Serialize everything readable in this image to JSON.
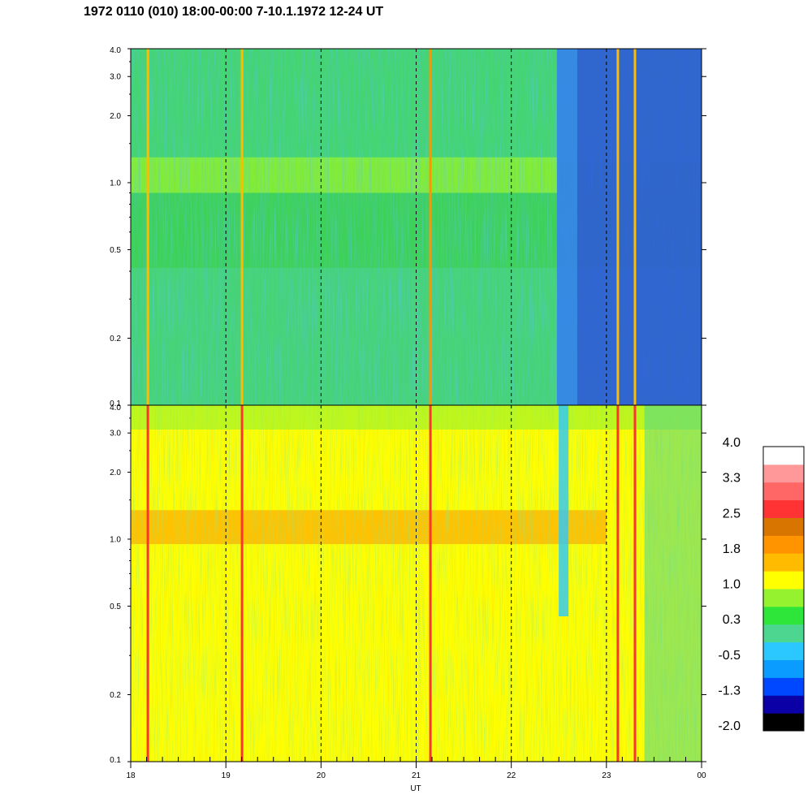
{
  "title": "1972 0110 (010) 18:00-00:00 7-10.1.1972  12-24 UT",
  "colors": {
    "colorbar": [
      "#000000",
      "#0a00a6",
      "#0048ff",
      "#0a9cff",
      "#2bc8ff",
      "#4cd68f",
      "#2ee63a",
      "#94f22e",
      "#ffff00",
      "#ffbb00",
      "#ff9400",
      "#d87400",
      "#ff3333",
      "#ff6666",
      "#ff9999",
      "#ffffff"
    ],
    "event_dark": "#2d53dd",
    "event_edge": "#3aa2ee"
  },
  "chart_data": [
    {
      "type": "heatmap",
      "panel": "top",
      "x": {
        "label": "",
        "ticks": [
          "18",
          "19",
          "20",
          "21",
          "22",
          "23",
          "00"
        ]
      },
      "y": {
        "scale": "log",
        "range": [
          0.1,
          4.0
        ],
        "ticks": [
          "0.1",
          "0.2",
          "0.5",
          "1.0",
          "2.0",
          "3.0",
          "4.0"
        ]
      },
      "background_color": "#3ed15a",
      "band": {
        "y_range": [
          0.9,
          1.3
        ],
        "color": "#94f22e",
        "x_end": 22.5
      },
      "dark_event": {
        "x_range": [
          22.48,
          24.0
        ],
        "color": "#2d53dd"
      },
      "spikes": [
        {
          "x": 18.18,
          "color": "#ffbb00"
        },
        {
          "x": 19.17,
          "color": "#ffbb00"
        },
        {
          "x": 21.15,
          "color": "#ff9400"
        },
        {
          "x": 23.12,
          "color": "#ffbb00"
        },
        {
          "x": 23.3,
          "color": "#ffbb00"
        }
      ],
      "dashed_lines_at": [
        19,
        20,
        21,
        22,
        23
      ]
    },
    {
      "type": "heatmap",
      "panel": "bottom",
      "x": {
        "label": "UT",
        "ticks": [
          "18",
          "19",
          "20",
          "21",
          "22",
          "23",
          "00"
        ]
      },
      "y": {
        "scale": "log",
        "range": [
          0.1,
          4.0
        ],
        "ticks": [
          "0.1",
          "0.2",
          "0.5",
          "1.0",
          "2.0",
          "3.0",
          "4.0"
        ]
      },
      "background_color": "#ffff00",
      "band": {
        "y_range": [
          0.95,
          1.35
        ],
        "color": "#ffbb00",
        "x_end": 23.0
      },
      "blue_streak": {
        "x": 22.55,
        "y_range": [
          0.45,
          4.0
        ],
        "color": "#2bc8ff"
      },
      "spikes": [
        {
          "x": 18.18,
          "color": "#ff3333"
        },
        {
          "x": 19.17,
          "color": "#ff3333"
        },
        {
          "x": 21.15,
          "color": "#ff3333"
        },
        {
          "x": 23.12,
          "color": "#ff3333"
        },
        {
          "x": 23.3,
          "color": "#ff3333"
        }
      ],
      "dashed_lines_at": [
        19,
        20,
        21,
        22,
        23
      ]
    }
  ],
  "colorbar": {
    "labels": [
      "4.0",
      "3.3",
      "2.5",
      "1.8",
      "1.0",
      "0.3",
      "-0.5",
      "-1.3",
      "-2.0"
    ]
  }
}
